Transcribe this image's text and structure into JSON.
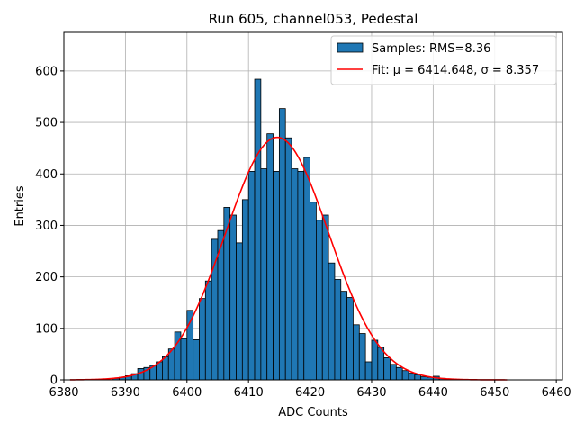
{
  "chart_data": {
    "type": "bar",
    "title": "Run 605, channel053, Pedestal",
    "xlabel": "ADC Counts",
    "ylabel": "Entries",
    "xlim": [
      6380,
      6461
    ],
    "ylim": [
      0,
      675
    ],
    "xticks": [
      6380,
      6390,
      6400,
      6410,
      6420,
      6430,
      6440,
      6450,
      6460
    ],
    "yticks": [
      0,
      100,
      200,
      300,
      400,
      500,
      600
    ],
    "grid": true,
    "legend_position": "top-right",
    "colors": {
      "bars": "#1f77b4",
      "bar_edge": "#000000",
      "fit": "#ff0000",
      "grid": "#b0b0b0"
    },
    "legend": [
      {
        "label": "Samples: RMS=8.36",
        "kind": "bar"
      },
      {
        "label": "Fit: μ = 6414.648, σ = 8.357",
        "kind": "line"
      }
    ],
    "histogram": {
      "bin_width": 1,
      "bin_starts": [
        6388,
        6389,
        6390,
        6391,
        6392,
        6393,
        6394,
        6395,
        6396,
        6397,
        6398,
        6399,
        6400,
        6401,
        6402,
        6403,
        6404,
        6405,
        6406,
        6407,
        6408,
        6409,
        6410,
        6411,
        6412,
        6413,
        6414,
        6415,
        6416,
        6417,
        6418,
        6419,
        6420,
        6421,
        6422,
        6423,
        6424,
        6425,
        6426,
        6427,
        6428,
        6429,
        6430,
        6431,
        6432,
        6433,
        6434,
        6435,
        6436,
        6437,
        6438,
        6439,
        6440,
        6441,
        6442,
        6443
      ],
      "counts": [
        3,
        5,
        8,
        12,
        22,
        24,
        28,
        35,
        45,
        60,
        93,
        80,
        135,
        78,
        158,
        192,
        273,
        290,
        335,
        320,
        266,
        350,
        405,
        584,
        410,
        478,
        405,
        527,
        470,
        410,
        405,
        432,
        345,
        310,
        320,
        227,
        195,
        172,
        160,
        107,
        90,
        35,
        77,
        63,
        43,
        30,
        24,
        18,
        13,
        10,
        6,
        5,
        7,
        3,
        2,
        1
      ]
    },
    "fit": {
      "mu": 6414.648,
      "sigma": 8.357,
      "amplitude": 471,
      "x_range": [
        6381,
        6452
      ]
    }
  }
}
